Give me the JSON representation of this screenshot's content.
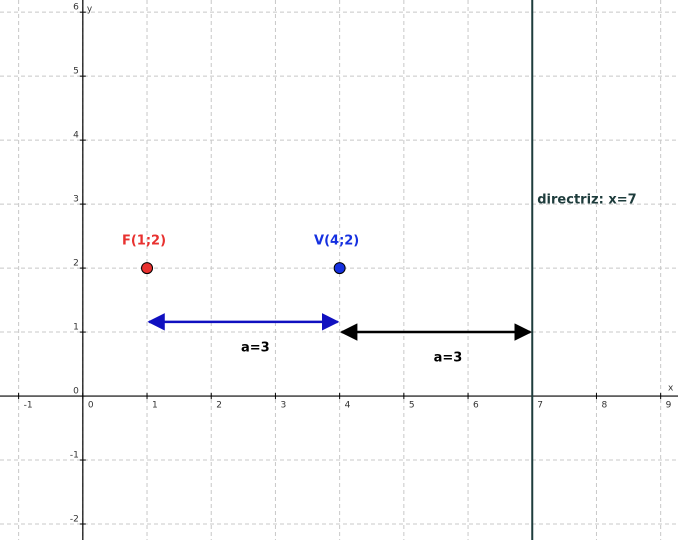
{
  "chart_data": {
    "type": "scatter",
    "xlabel": "x",
    "ylabel": "y",
    "xlim": [
      -1.29,
      9.27
    ],
    "ylim": [
      -2.25,
      6.19
    ],
    "xticks": [
      -1,
      0,
      1,
      2,
      3,
      4,
      5,
      6,
      7,
      8,
      9
    ],
    "yticks": [
      -2,
      -1,
      0,
      1,
      2,
      3,
      4,
      5,
      6
    ],
    "grid": true,
    "series": [
      {
        "name": "F(1;2)",
        "color": "#e8312f",
        "x": [
          1
        ],
        "values": [
          2
        ]
      },
      {
        "name": "V(4;2)",
        "color": "#1530e0",
        "x": [
          4
        ],
        "values": [
          2
        ]
      }
    ],
    "lines": [
      {
        "label": "directriz: x=7",
        "x": 7,
        "color": "#1e3c3c"
      }
    ],
    "arrows": [
      {
        "label": "a=3",
        "x": [
          1,
          4
        ],
        "y": 1.16,
        "color": "#1010c0"
      },
      {
        "label": "a=3",
        "x": [
          4,
          7
        ],
        "y": 1,
        "color": "#000000"
      }
    ]
  }
}
